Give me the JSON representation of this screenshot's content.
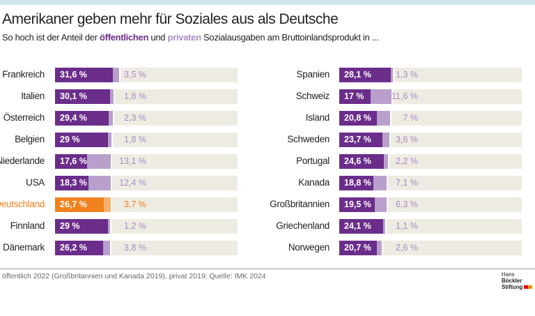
{
  "title": "Amerikaner geben mehr für Soziales aus als Deutsche",
  "subtitle": {
    "pre": "So hoch ist der Anteil der ",
    "public": "öffentlichen",
    "mid": " und ",
    "private": "privaten",
    "post": " Sozialausgaben am Bruttoinlandsprodukt in ..."
  },
  "source": "öffentlich 2022 (Großbritannien und Kanada 2019), privat 2019; Quelle: IMK 2024",
  "logo": {
    "line1a": "Hans ",
    "line1b": "Böckler",
    "line2": "Stiftung"
  },
  "colors": {
    "public": "#6b2d8a",
    "private": "#b9a0cc",
    "track": "#eeebe2",
    "highlight_public": "#f0821e",
    "highlight_private": "#f7b06a",
    "highlight_label": "#f0821e"
  },
  "chart_data": [
    {
      "type": "bar",
      "stacked": true,
      "orientation": "horizontal",
      "xlim": [
        0,
        100
      ],
      "unit": "%",
      "series": [
        "öffentlich",
        "privat"
      ],
      "categories": [
        "Frankreich",
        "Italien",
        "Österreich",
        "Belgien",
        "Niederlande",
        "USA",
        "Deutschland",
        "Finnland",
        "Dänemark"
      ],
      "public": [
        31.6,
        30.1,
        29.4,
        29,
        17.6,
        18.3,
        26.7,
        29,
        26.2
      ],
      "private": [
        3.5,
        1.8,
        2.3,
        1.8,
        13.1,
        12.4,
        3.7,
        1.2,
        3.8
      ],
      "public_labels": [
        "31,6 %",
        "30,1 %",
        "29,4 %",
        "29 %",
        "17,6 %",
        "18,3 %",
        "26,7 %",
        "29 %",
        "26,2 %"
      ],
      "private_labels": [
        "3,5 %",
        "1,8 %",
        "2,3 %",
        "1,8 %",
        "13,1 %",
        "12,4 %",
        "3,7 %",
        "1,2 %",
        "3,8 %"
      ],
      "highlight": "Deutschland"
    },
    {
      "type": "bar",
      "stacked": true,
      "orientation": "horizontal",
      "xlim": [
        0,
        100
      ],
      "unit": "%",
      "series": [
        "öffentlich",
        "privat"
      ],
      "categories": [
        "Spanien",
        "Schweiz",
        "Island",
        "Schweden",
        "Portugal",
        "Kanada",
        "Großbritannien",
        "Griechenland",
        "Norwegen"
      ],
      "public": [
        28.1,
        17,
        20.8,
        23.7,
        24.6,
        18.8,
        19.5,
        24.1,
        20.7
      ],
      "private": [
        1.3,
        11.6,
        7,
        3.6,
        2.2,
        7.1,
        6.3,
        1.1,
        2.6
      ],
      "public_labels": [
        "28,1 %",
        "17 %",
        "20,8 %",
        "23,7 %",
        "24,6 %",
        "18,8 %",
        "19,5 %",
        "24,1 %",
        "20,7 %"
      ],
      "private_labels": [
        "1,3 %",
        "11,6 %",
        "7 %",
        "3,6 %",
        "2,2 %",
        "7,1 %",
        "6,3 %",
        "1,1 %",
        "2,6 %"
      ]
    }
  ]
}
